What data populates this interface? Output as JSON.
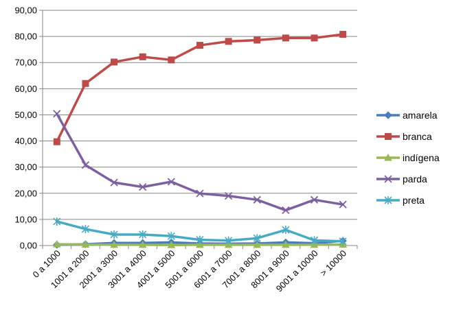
{
  "chart_data": {
    "type": "line",
    "categories": [
      "0 a 1000",
      "1001 a 2000",
      "2001 a 3000",
      "3001 a 4000",
      "4001 a 5000",
      "5001 a 6000",
      "6001 a 7000",
      "7001 a 8000",
      "8001 a 9000",
      "9001 a 10000",
      "> 10000"
    ],
    "ylim": [
      0,
      90
    ],
    "yticks": [
      "0,00",
      "10,00",
      "20,00",
      "30,00",
      "40,00",
      "50,00",
      "60,00",
      "70,00",
      "80,00",
      "90,00"
    ],
    "grid": true,
    "legend_position": "right",
    "series": [
      {
        "name": "amarela",
        "color": "#4a7ebb",
        "marker": "diamond",
        "values": [
          0.3,
          0.5,
          1.0,
          1.0,
          1.2,
          0.8,
          0.7,
          0.8,
          1.2,
          0.9,
          1.8
        ]
      },
      {
        "name": "branca",
        "color": "#be4b48",
        "marker": "square",
        "values": [
          39.7,
          62.0,
          70.2,
          72.2,
          71.0,
          76.6,
          78.1,
          78.6,
          79.4,
          79.4,
          80.8
        ]
      },
      {
        "name": "indígena",
        "color": "#98b954",
        "marker": "triangle",
        "values": [
          0.5,
          0.4,
          0.3,
          0.3,
          0.2,
          0.3,
          0.3,
          0.3,
          0.3,
          0.3,
          0.4
        ]
      },
      {
        "name": "parda",
        "color": "#7d60a0",
        "marker": "x",
        "values": [
          50.4,
          30.8,
          24.1,
          22.4,
          24.4,
          19.9,
          19.0,
          17.5,
          13.5,
          17.5,
          15.7
        ]
      },
      {
        "name": "preta",
        "color": "#46aac5",
        "marker": "star",
        "values": [
          9.2,
          6.3,
          4.2,
          4.2,
          3.6,
          2.2,
          1.9,
          2.8,
          6.0,
          2.0,
          1.6
        ]
      }
    ]
  }
}
